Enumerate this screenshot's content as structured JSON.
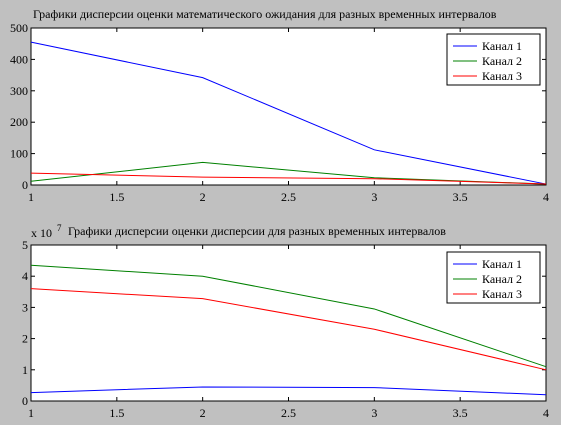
{
  "chart_data": [
    {
      "type": "line",
      "title": "Графики дисперсии оценки математического ожидания для разных временных интервалов",
      "xlabel": "",
      "ylabel": "",
      "x": [
        1,
        2,
        3,
        4
      ],
      "xlim": [
        1,
        4
      ],
      "ylim": [
        0,
        500
      ],
      "x_ticks": [
        "1",
        "1.5",
        "2",
        "2.5",
        "3",
        "3.5",
        "4"
      ],
      "y_ticks": [
        "0",
        "100",
        "200",
        "300",
        "400",
        "500"
      ],
      "scale_label": "",
      "grid": false,
      "legend_position": "top-right",
      "series": [
        {
          "name": "Канал 1",
          "color": "#0000ff",
          "values": [
            455,
            342,
            112,
            3
          ]
        },
        {
          "name": "Канал 2",
          "color": "#008000",
          "values": [
            12,
            72,
            23,
            3
          ]
        },
        {
          "name": "Канал 3",
          "color": "#ff0000",
          "values": [
            38,
            25,
            20,
            3
          ]
        }
      ]
    },
    {
      "type": "line",
      "title": "Графики дисперсии оценки дисперсии для разных временных интервалов",
      "xlabel": "",
      "ylabel": "",
      "x": [
        1,
        2,
        3,
        4
      ],
      "xlim": [
        1,
        4
      ],
      "ylim": [
        0,
        5
      ],
      "x_ticks": [
        "1",
        "1.5",
        "2",
        "2.5",
        "3",
        "3.5",
        "4"
      ],
      "y_ticks": [
        "0",
        "1",
        "2",
        "3",
        "4",
        "5"
      ],
      "scale_label": "x 10",
      "scale_exponent": "7",
      "grid": false,
      "legend_position": "top-right",
      "series": [
        {
          "name": "Канал 1",
          "color": "#0000ff",
          "values": [
            0.27,
            0.45,
            0.43,
            0.2
          ]
        },
        {
          "name": "Канал 2",
          "color": "#008000",
          "values": [
            4.35,
            4.0,
            2.95,
            1.1
          ]
        },
        {
          "name": "Канал 3",
          "color": "#ff0000",
          "values": [
            3.6,
            3.28,
            2.3,
            1.0
          ]
        }
      ]
    }
  ]
}
